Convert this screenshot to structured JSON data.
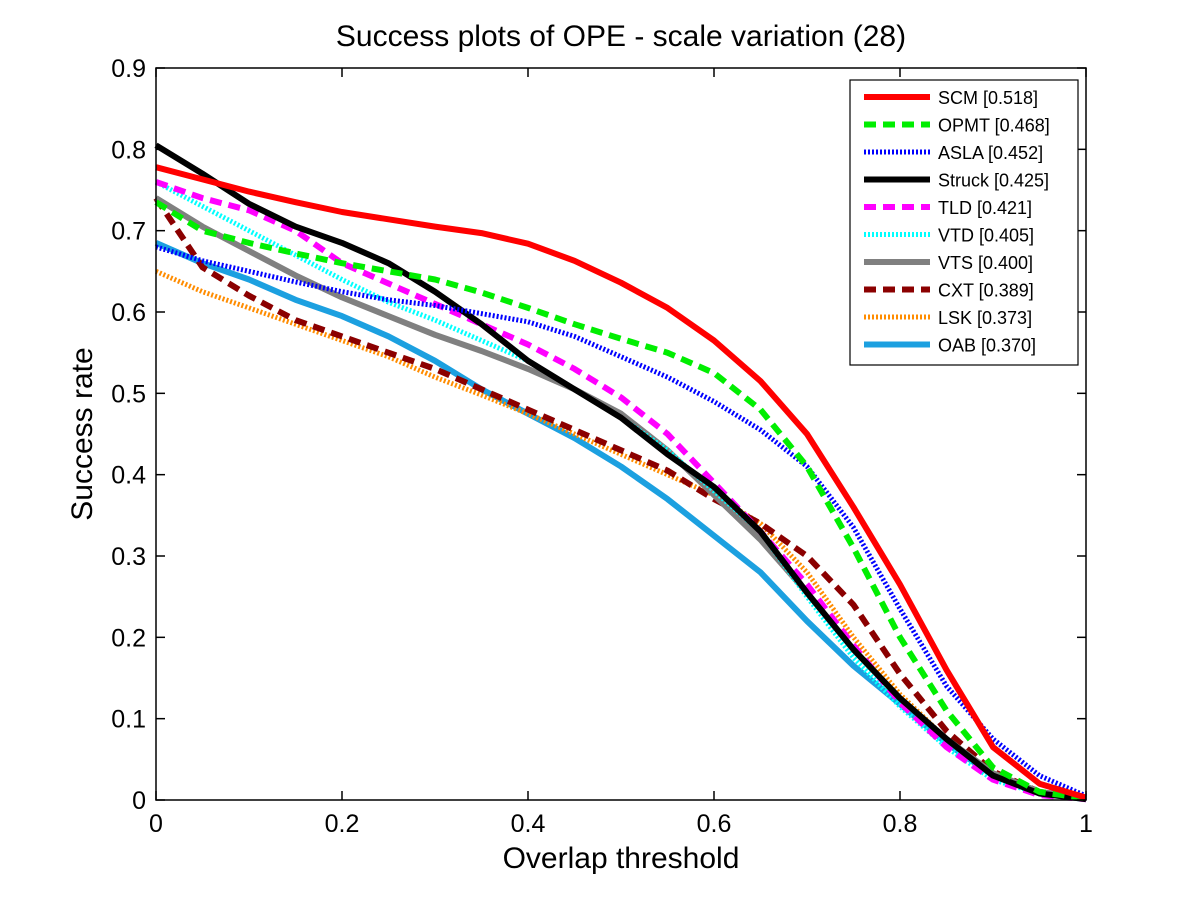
{
  "chart_data": {
    "type": "line",
    "title": "Success plots of OPE - scale variation (28)",
    "xlabel": "Overlap threshold",
    "ylabel": "Success rate",
    "xlim": [
      0,
      1
    ],
    "ylim": [
      0,
      0.9
    ],
    "xticks": [
      "0",
      "0.2",
      "0.4",
      "0.6",
      "0.8",
      "1"
    ],
    "yticks": [
      "0",
      "0.1",
      "0.2",
      "0.3",
      "0.4",
      "0.5",
      "0.6",
      "0.7",
      "0.8",
      "0.9"
    ],
    "legend_position": "top-right",
    "grid": false,
    "x": [
      0,
      0.05,
      0.1,
      0.15,
      0.2,
      0.25,
      0.3,
      0.35,
      0.4,
      0.45,
      0.5,
      0.55,
      0.6,
      0.65,
      0.7,
      0.75,
      0.8,
      0.85,
      0.9,
      0.95,
      1.0
    ],
    "series": [
      {
        "name": "SCM [0.518]",
        "color": "#ff0000",
        "style": "solid",
        "values": [
          0.778,
          0.763,
          0.748,
          0.735,
          0.723,
          0.714,
          0.705,
          0.697,
          0.684,
          0.663,
          0.636,
          0.605,
          0.565,
          0.515,
          0.45,
          0.36,
          0.265,
          0.16,
          0.065,
          0.02,
          0.003
        ]
      },
      {
        "name": "OPMT [0.468]",
        "color": "#00ee00",
        "style": "dashed",
        "values": [
          0.735,
          0.7,
          0.685,
          0.672,
          0.66,
          0.65,
          0.64,
          0.624,
          0.605,
          0.585,
          0.567,
          0.55,
          0.525,
          0.48,
          0.41,
          0.31,
          0.2,
          0.11,
          0.04,
          0.01,
          0.002
        ]
      },
      {
        "name": "ASLA [0.452]",
        "color": "#0000ff",
        "style": "dotted",
        "values": [
          0.68,
          0.663,
          0.65,
          0.637,
          0.625,
          0.615,
          0.608,
          0.598,
          0.588,
          0.57,
          0.545,
          0.52,
          0.49,
          0.455,
          0.41,
          0.335,
          0.235,
          0.14,
          0.075,
          0.03,
          0.005
        ]
      },
      {
        "name": "Struck [0.425]",
        "color": "#000000",
        "style": "solid",
        "values": [
          0.805,
          0.77,
          0.733,
          0.705,
          0.685,
          0.66,
          0.625,
          0.585,
          0.54,
          0.505,
          0.47,
          0.425,
          0.385,
          0.33,
          0.255,
          0.185,
          0.125,
          0.075,
          0.03,
          0.008,
          0.001
        ]
      },
      {
        "name": "TLD [0.421]",
        "color": "#ff00ff",
        "style": "dashed",
        "values": [
          0.76,
          0.74,
          0.725,
          0.7,
          0.66,
          0.635,
          0.61,
          0.585,
          0.56,
          0.53,
          0.495,
          0.45,
          0.39,
          0.33,
          0.265,
          0.19,
          0.12,
          0.065,
          0.025,
          0.006,
          0.001
        ]
      },
      {
        "name": "VTD [0.405]",
        "color": "#00ffff",
        "style": "dotted",
        "values": [
          0.76,
          0.73,
          0.7,
          0.67,
          0.64,
          0.612,
          0.59,
          0.565,
          0.54,
          0.505,
          0.47,
          0.43,
          0.38,
          0.33,
          0.25,
          0.175,
          0.115,
          0.065,
          0.025,
          0.008,
          0.001
        ]
      },
      {
        "name": "VTS [0.400]",
        "color": "#808080",
        "style": "solid",
        "values": [
          0.74,
          0.705,
          0.675,
          0.645,
          0.618,
          0.595,
          0.572,
          0.552,
          0.53,
          0.505,
          0.475,
          0.43,
          0.375,
          0.32,
          0.255,
          0.185,
          0.125,
          0.075,
          0.033,
          0.01,
          0.002
        ]
      },
      {
        "name": "CXT [0.389]",
        "color": "#8b0000",
        "style": "dashed",
        "values": [
          0.74,
          0.655,
          0.62,
          0.59,
          0.57,
          0.55,
          0.53,
          0.505,
          0.48,
          0.455,
          0.43,
          0.405,
          0.37,
          0.34,
          0.3,
          0.24,
          0.155,
          0.085,
          0.035,
          0.01,
          0.002
        ]
      },
      {
        "name": "LSK [0.373]",
        "color": "#ff8c00",
        "style": "dotted",
        "values": [
          0.65,
          0.625,
          0.605,
          0.585,
          0.565,
          0.545,
          0.52,
          0.498,
          0.475,
          0.45,
          0.425,
          0.4,
          0.375,
          0.34,
          0.28,
          0.2,
          0.13,
          0.075,
          0.03,
          0.008,
          0.001
        ]
      },
      {
        "name": "OAB [0.370]",
        "color": "#1ca0e0",
        "style": "solid",
        "values": [
          0.685,
          0.66,
          0.64,
          0.615,
          0.595,
          0.57,
          0.54,
          0.505,
          0.475,
          0.445,
          0.41,
          0.37,
          0.325,
          0.28,
          0.22,
          0.165,
          0.118,
          0.07,
          0.03,
          0.008,
          0.001
        ]
      }
    ]
  }
}
